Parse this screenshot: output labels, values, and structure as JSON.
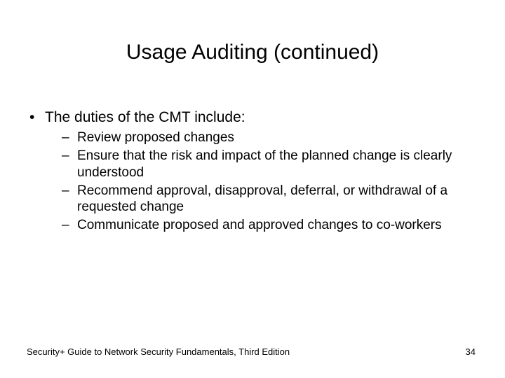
{
  "title": "Usage Auditing (continued)",
  "intro": "The duties of the CMT include:",
  "items": {
    "0": "Review proposed changes",
    "1": "Ensure that the risk and impact of the planned change is clearly understood",
    "2": "Recommend approval, disapproval, deferral, or withdrawal of a requested change",
    "3": "Communicate proposed and approved changes to co-workers"
  },
  "footer": {
    "left": "Security+ Guide to Network Security Fundamentals, Third Edition",
    "page": "34"
  },
  "style": {
    "background_color": "#ffffff",
    "text_color": "#000000",
    "title_fontsize": 30,
    "body_fontsize": 21,
    "sub_fontsize": 19,
    "footer_fontsize": 13,
    "font_family": "Arial"
  }
}
